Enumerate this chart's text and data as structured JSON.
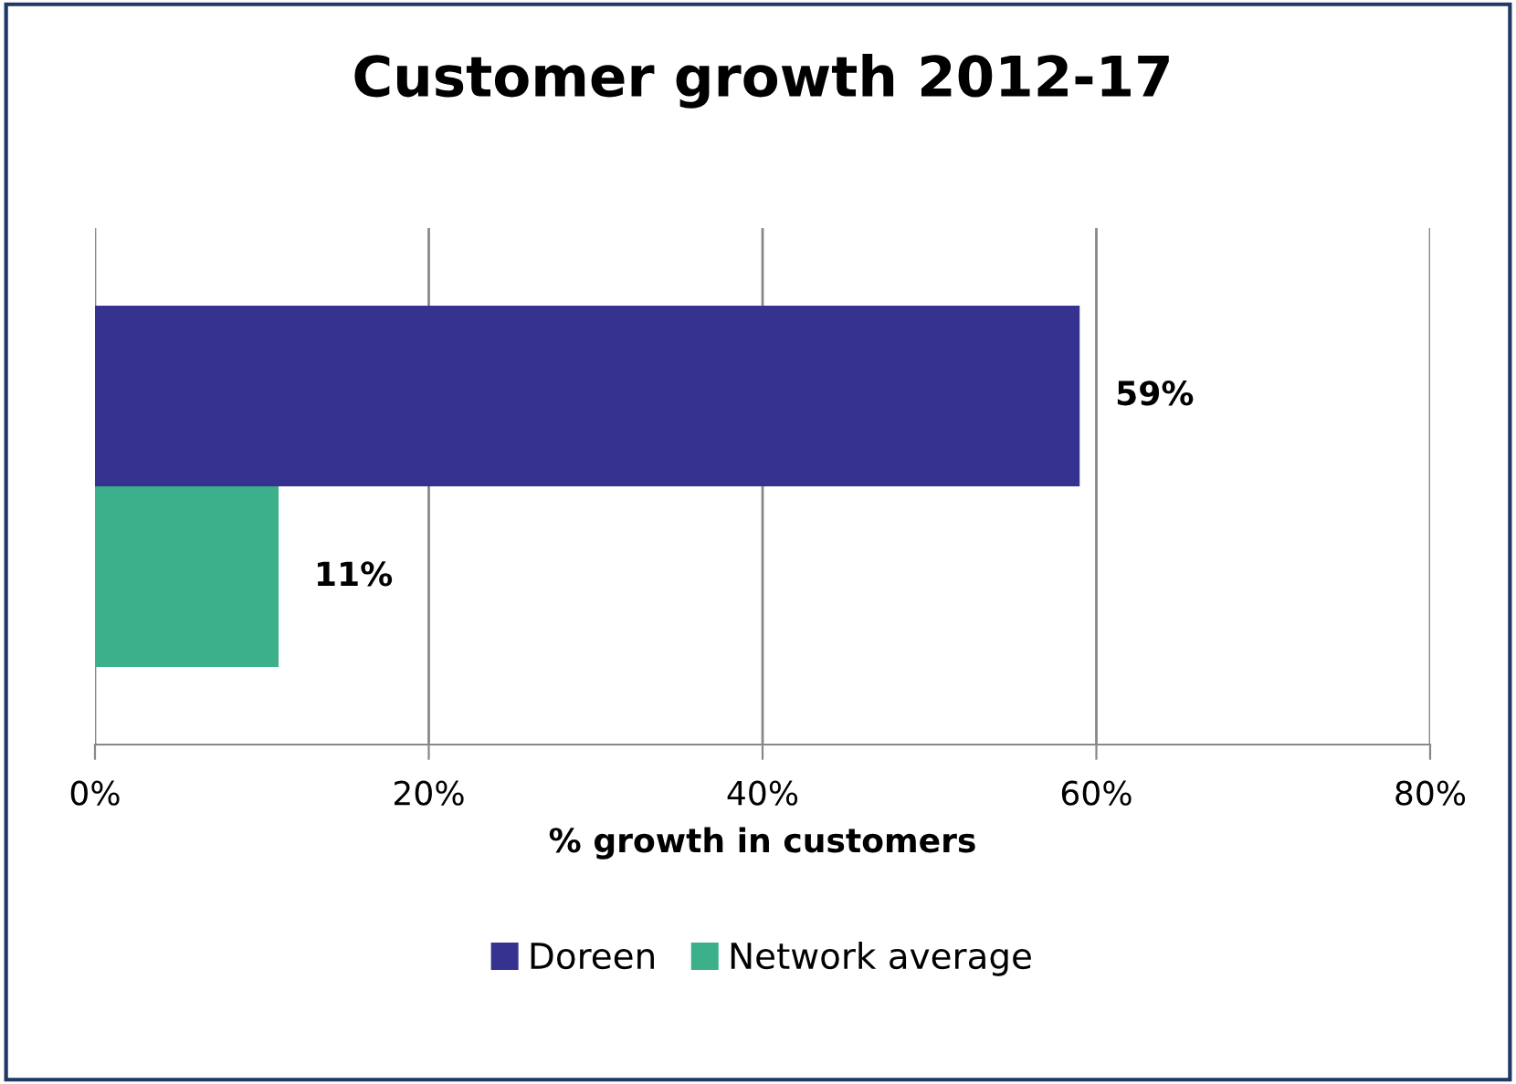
{
  "chart_data": {
    "type": "bar",
    "orientation": "horizontal",
    "title": "Customer growth 2012-17",
    "xlabel": "% growth in customers",
    "categories": [
      null
    ],
    "series": [
      {
        "name": "Doreen",
        "color": "#35338f",
        "values": [
          59
        ],
        "value_labels": [
          "59%"
        ]
      },
      {
        "name": "Network average",
        "color": "#3cb08a",
        "values": [
          11
        ],
        "value_labels": [
          "11%"
        ]
      }
    ],
    "xlim": [
      0,
      80
    ],
    "xticks": [
      {
        "value": 0,
        "label": "0%"
      },
      {
        "value": 20,
        "label": "20%"
      },
      {
        "value": 40,
        "label": "40%"
      },
      {
        "value": 60,
        "label": "60%"
      },
      {
        "value": 80,
        "label": "80%"
      }
    ],
    "grid": "x",
    "legend": "bottom"
  }
}
